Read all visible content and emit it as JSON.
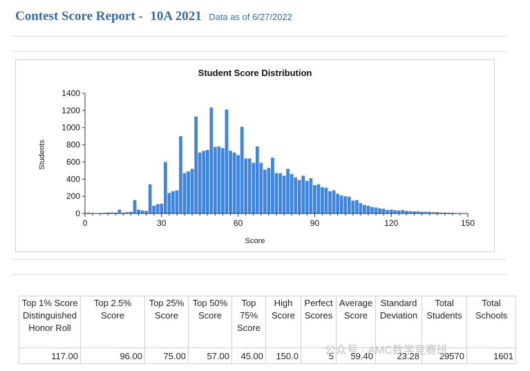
{
  "header": {
    "title": "Contest Score Report -",
    "contest": "10A 2021",
    "data_as_of": "Data as of 6/27/2022"
  },
  "chart_data": {
    "type": "bar",
    "title": "Student Score Distribution",
    "xlabel": "Score",
    "ylabel": "Students",
    "xlim": [
      0,
      150
    ],
    "ylim": [
      0,
      1400
    ],
    "x_ticks": [
      0,
      30,
      60,
      90,
      120,
      150
    ],
    "y_ticks": [
      0,
      200,
      400,
      600,
      800,
      1000,
      1200,
      1400
    ],
    "bar_color": "#3d85e0",
    "grid": false,
    "legend": "none",
    "x": [
      1.5,
      3,
      4.5,
      6,
      7.5,
      9,
      10.5,
      12,
      13.5,
      15,
      16.5,
      18,
      19.5,
      21,
      22.5,
      24,
      25.5,
      27,
      28.5,
      30,
      31.5,
      33,
      34.5,
      36,
      37.5,
      39,
      40.5,
      42,
      43.5,
      45,
      46.5,
      48,
      49.5,
      51,
      52.5,
      54,
      55.5,
      57,
      58.5,
      60,
      61.5,
      63,
      64.5,
      66,
      67.5,
      69,
      70.5,
      72,
      73.5,
      75,
      76.5,
      78,
      79.5,
      81,
      82.5,
      84,
      85.5,
      87,
      88.5,
      90,
      91.5,
      93,
      94.5,
      96,
      97.5,
      99,
      100.5,
      102,
      103.5,
      105,
      106.5,
      108,
      109.5,
      111,
      112.5,
      114,
      115.5,
      117,
      118.5,
      120,
      121.5,
      123,
      124.5,
      126,
      127.5,
      129,
      130.5,
      132,
      133.5,
      135,
      136.5,
      138,
      139.5,
      141,
      142.5,
      144,
      145.5
    ],
    "values": [
      10,
      5,
      3,
      5,
      8,
      10,
      12,
      10,
      45,
      10,
      15,
      20,
      155,
      45,
      35,
      30,
      340,
      90,
      110,
      115,
      600,
      240,
      260,
      270,
      900,
      470,
      490,
      520,
      1130,
      710,
      730,
      740,
      1235,
      775,
      780,
      760,
      1210,
      730,
      710,
      680,
      1010,
      640,
      640,
      590,
      780,
      590,
      510,
      530,
      650,
      470,
      470,
      440,
      520,
      460,
      420,
      390,
      440,
      380,
      410,
      330,
      340,
      305,
      300,
      260,
      270,
      230,
      210,
      200,
      195,
      150,
      155,
      120,
      100,
      90,
      75,
      70,
      60,
      55,
      40,
      45,
      38,
      35,
      40,
      30,
      28,
      25,
      25,
      20,
      20,
      20,
      15,
      15,
      12,
      10,
      10,
      8,
      5
    ]
  },
  "table": {
    "headers": [
      "Top 1% Score Distinguished Honor Roll",
      "Top 2.5% Score",
      "Top 25% Score",
      "Top 50% Score",
      "Top 75% Score",
      "High Score",
      "Perfect Scores",
      "Average Score",
      "Standard Deviation",
      "Total Students",
      "Total Schools"
    ],
    "values": [
      "117.00",
      "96.00",
      "75.00",
      "57.00",
      "45.00",
      "150.0",
      "5",
      "59.40",
      "23.28",
      "29570",
      "1601"
    ]
  },
  "watermark": "公众号 · AMC数学竞赛班"
}
